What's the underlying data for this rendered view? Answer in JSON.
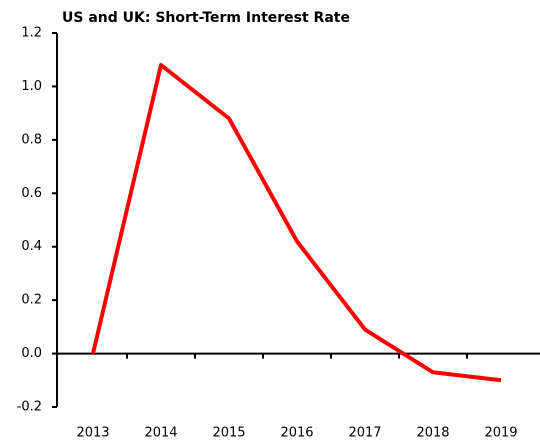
{
  "chart_data": {
    "type": "line",
    "title": "US and UK: Short-Term Interest Rate",
    "categories": [
      "2013",
      "2014",
      "2015",
      "2016",
      "2017",
      "2018",
      "2019"
    ],
    "series": [
      {
        "name": "Short-Term Interest Rate",
        "color": "#ff0000",
        "values": [
          0.0,
          1.08,
          0.88,
          0.42,
          0.09,
          -0.07,
          -0.1
        ]
      }
    ],
    "ylim": [
      -0.2,
      1.2
    ],
    "yticks": [
      -0.2,
      {
        "value": 0,
        "label": "0.0"
      },
      0.2,
      0.4,
      0.6,
      0.8,
      {
        "value": 1,
        "label": "1.0"
      },
      1.2
    ]
  }
}
